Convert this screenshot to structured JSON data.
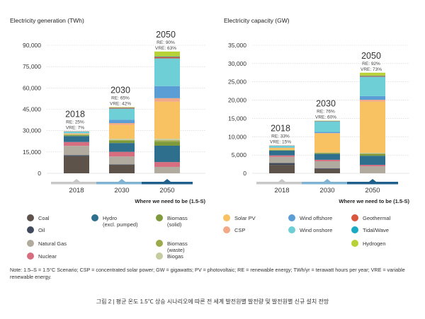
{
  "colors": {
    "Coal": "#5d534b",
    "Oil": "#404a5c",
    "Natural Gas": "#b1ab9f",
    "Nuclear": "#d66e80",
    "Hydro": "#2e6f8e",
    "Biomass (solid)": "#7f9a3b",
    "Biomass (waste)": "#9da94a",
    "Biogas": "#c5cc9f",
    "Solar PV": "#f8c262",
    "CSP": "#f2a987",
    "Wind offshore": "#5b9ed6",
    "Wind onshore": "#6fcfd6",
    "Geothermal": "#d8563d",
    "Tidal/Wave": "#19aac3",
    "Hydrogen": "#b7d236"
  },
  "legend": [
    {
      "name": "Coal",
      "label": "Coal"
    },
    {
      "name": "Oil",
      "label": "Oil"
    },
    {
      "name": "Natural Gas",
      "label": "Natural Gas"
    },
    {
      "name": "Nuclear",
      "label": "Nuclear"
    },
    {
      "name": "Hydro",
      "label": "Hydro\n(excl. pumped)"
    },
    {
      "name": "Biomass (solid)",
      "label": "Biomass\n(solid)"
    },
    {
      "name": "Biomass (waste)",
      "label": "Biomass\n(waste)"
    },
    {
      "name": "Biogas",
      "label": "Biogas"
    },
    {
      "name": "Solar PV",
      "label": "Solar PV"
    },
    {
      "name": "CSP",
      "label": "CSP"
    },
    {
      "name": "Wind offshore",
      "label": "Wind offshore"
    },
    {
      "name": "Wind onshore",
      "label": "Wind onshore"
    },
    {
      "name": "Geothermal",
      "label": "Geothermal"
    },
    {
      "name": "Tidal/Wave",
      "label": "Tidal/Wave"
    },
    {
      "name": "Hydrogen",
      "label": "Hydrogen"
    }
  ],
  "note": "Note: 1.5–S = 1.5°C Scenario; CSP = concentrated solar power; GW = gigawatts; PV = photovoltaic; RE = renewable energy; TWh/yr = terawatt hours per year; VRE = variable renewable energy.",
  "caption": "그림 2 | 평균 온도 1.5℃ 상승 시나리오에 따른 전 세계 발전원별 발전량 및 발전원별 신규 설치 전망",
  "chart_data": [
    {
      "type": "bar",
      "stacked": true,
      "title": "Electricity generation (TWh)",
      "xlabel": "Where we need to be (1.5-S)",
      "categories": [
        "2018",
        "2030",
        "2050"
      ],
      "ylim": [
        0,
        90000
      ],
      "yticks": [
        0,
        15000,
        30000,
        45000,
        60000,
        75000,
        90000
      ],
      "ytick_labels": [
        "0",
        "15,000",
        "30,000",
        "45,000",
        "60,000",
        "75,000",
        "90,000"
      ],
      "annotations": [
        {
          "year": "2018",
          "re": "RE: 25%",
          "vre": "VRE: 7%"
        },
        {
          "year": "2030",
          "re": "RE: 65%",
          "vre": "VRE: 42%"
        },
        {
          "year": "2050",
          "re": "RE: 90%",
          "vre": "VRE: 63%"
        }
      ],
      "series": [
        {
          "name": "Coal",
          "values": [
            12000,
            6000,
            0
          ]
        },
        {
          "name": "Oil",
          "values": [
            800,
            300,
            0
          ]
        },
        {
          "name": "Natural Gas",
          "values": [
            6500,
            5500,
            4500
          ]
        },
        {
          "name": "Nuclear",
          "values": [
            2700,
            3300,
            3400
          ]
        },
        {
          "name": "Hydro",
          "values": [
            4200,
            6200,
            11500
          ]
        },
        {
          "name": "Biomass (solid)",
          "values": [
            600,
            1700,
            2800
          ]
        },
        {
          "name": "Biomass (waste)",
          "values": [
            300,
            400,
            900
          ]
        },
        {
          "name": "Biogas",
          "values": [
            300,
            900,
            1200
          ]
        },
        {
          "name": "Solar PV",
          "values": [
            600,
            9700,
            26000
          ]
        },
        {
          "name": "CSP",
          "values": [
            100,
            1300,
            2500
          ]
        },
        {
          "name": "Wind offshore",
          "values": [
            100,
            2400,
            8500
          ]
        },
        {
          "name": "Wind onshore",
          "values": [
            1300,
            7800,
            19500
          ]
        },
        {
          "name": "Geothermal",
          "values": [
            100,
            600,
            1000
          ]
        },
        {
          "name": "Tidal/Wave",
          "values": [
            0,
            100,
            400
          ]
        },
        {
          "name": "Hydrogen",
          "values": [
            0,
            300,
            3400
          ]
        }
      ]
    },
    {
      "type": "bar",
      "stacked": true,
      "title": "Electricity capacity (GW)",
      "xlabel": "Where we need to be (1.5-S)",
      "categories": [
        "2018",
        "2030",
        "2050"
      ],
      "ylim": [
        0,
        35000
      ],
      "yticks": [
        0,
        5000,
        10000,
        15000,
        20000,
        25000,
        30000,
        35000
      ],
      "ytick_labels": [
        "0",
        "5,000",
        "10,000",
        "15,000",
        "20,000",
        "25,000",
        "30,000",
        "35,000"
      ],
      "annotations": [
        {
          "year": "2018",
          "re": "RE: 33%",
          "vre": "VRE: 15%"
        },
        {
          "year": "2030",
          "re": "RE: 76%",
          "vre": "VRE: 60%"
        },
        {
          "year": "2050",
          "re": "RE: 92%",
          "vre": "VRE: 73%"
        }
      ],
      "series": [
        {
          "name": "Coal",
          "values": [
            2300,
            1200,
            0
          ]
        },
        {
          "name": "Oil",
          "values": [
            500,
            200,
            0
          ]
        },
        {
          "name": "Natural Gas",
          "values": [
            1700,
            1900,
            1900
          ]
        },
        {
          "name": "Nuclear",
          "values": [
            400,
            400,
            400
          ]
        },
        {
          "name": "Hydro",
          "values": [
            1300,
            1600,
            2500
          ]
        },
        {
          "name": "Biomass (solid)",
          "values": [
            150,
            250,
            500
          ]
        },
        {
          "name": "Biomass (waste)",
          "values": [
            50,
            50,
            100
          ]
        },
        {
          "name": "Biogas",
          "values": [
            50,
            100,
            200
          ]
        },
        {
          "name": "Solar PV",
          "values": [
            500,
            5200,
            14000
          ]
        },
        {
          "name": "CSP",
          "values": [
            50,
            100,
            500
          ]
        },
        {
          "name": "Wind offshore",
          "values": [
            50,
            300,
            1000
          ]
        },
        {
          "name": "Wind onshore",
          "values": [
            500,
            2900,
            5300
          ]
        },
        {
          "name": "Geothermal",
          "values": [
            50,
            100,
            200
          ]
        },
        {
          "name": "Tidal/Wave",
          "values": [
            0,
            50,
            100
          ]
        },
        {
          "name": "Hydrogen",
          "values": [
            0,
            50,
            800
          ]
        }
      ]
    }
  ]
}
